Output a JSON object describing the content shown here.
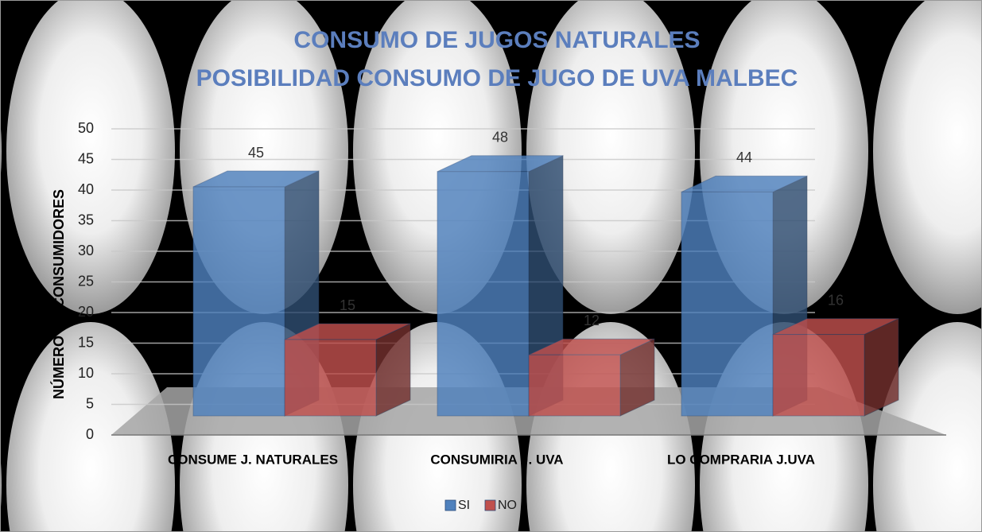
{
  "chart_data": {
    "type": "bar3d",
    "title": [
      "CONSUMO DE JUGOS NATURALES",
      "POSIBILIDAD CONSUMO DE JUGO DE UVA MALBEC"
    ],
    "y_label": "NÚMERO DE CONSUMIDORES",
    "categories": [
      "CONSUME J. NATURALES",
      "CONSUMIRIA J. UVA",
      "LO COMPRARIA J.UVA"
    ],
    "series": [
      {
        "name": "SI",
        "color": "#4f81bd",
        "values": [
          45,
          48,
          44
        ]
      },
      {
        "name": "NO",
        "color": "#c0504d",
        "values": [
          15,
          12,
          16
        ]
      }
    ],
    "ylim": [
      0,
      50
    ],
    "yticks": [
      0,
      5,
      10,
      15,
      20,
      25,
      30,
      35,
      40,
      45,
      50
    ],
    "grid": true,
    "legend": "bottom"
  }
}
